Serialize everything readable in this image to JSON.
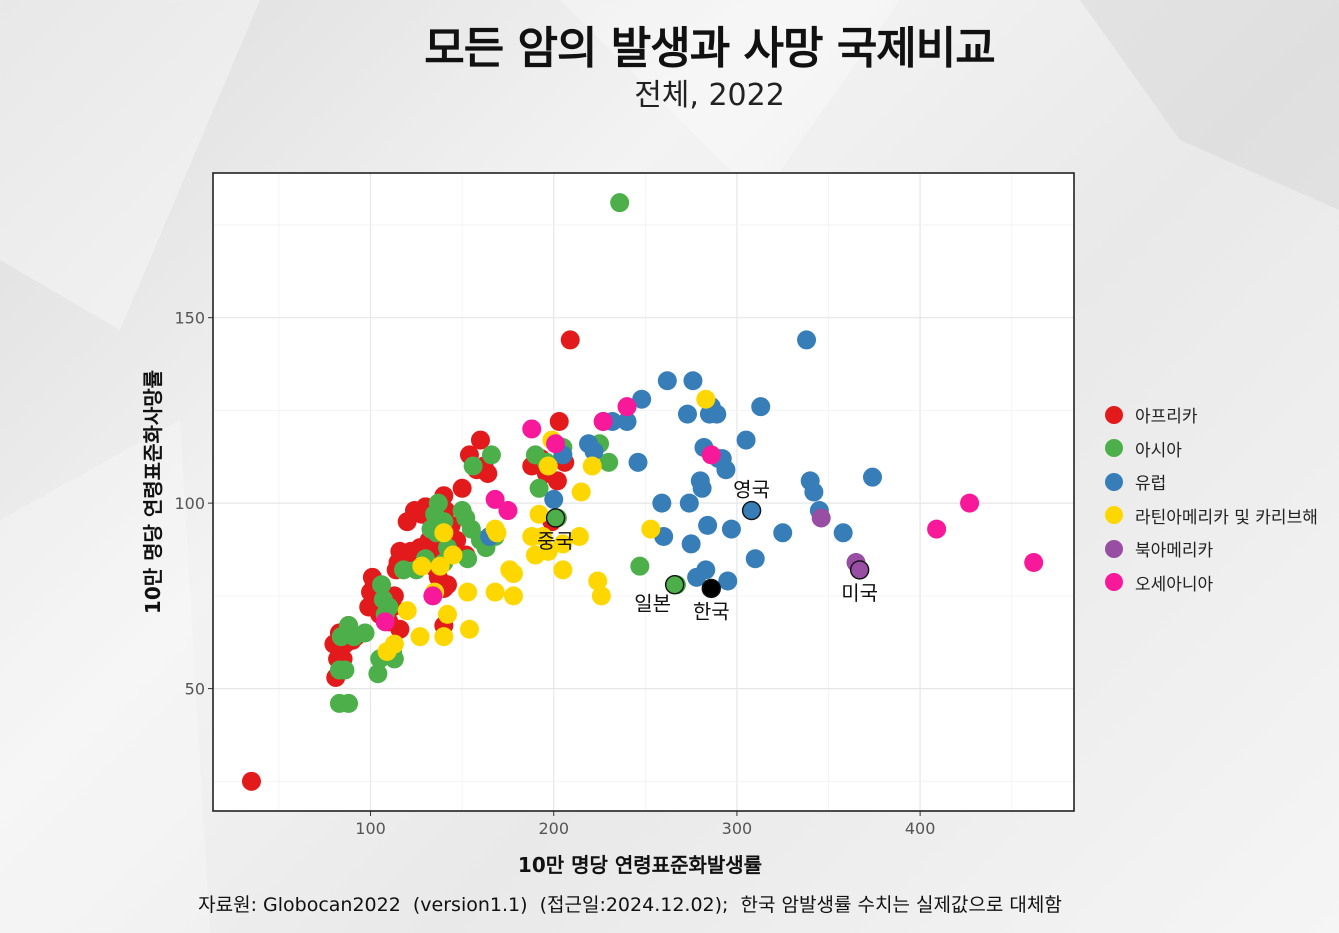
{
  "title": "모든 암의 발생과 사망 국제비교",
  "subtitle": "전체, 2022",
  "caption": "자료원: Globocan2022  (version1.1)  (접근일:2024.12.02);  한국 암발생률 수치는 실제값으로 대체함",
  "colors": {
    "africa": "#e31a1c",
    "asia": "#4daf4a",
    "europe": "#377eb8",
    "latin": "#ffd700",
    "northamerica": "#984ea3",
    "oceania": "#f7199a",
    "korea": "#000000"
  },
  "chart_data": {
    "type": "scatter",
    "xlabel": "10만 명당 연령표준화발생률",
    "ylabel": "10만 명당 연령표준화사망률",
    "xlim": [
      14,
      484
    ],
    "ylim": [
      17,
      189
    ],
    "xticks": [
      100,
      200,
      300,
      400
    ],
    "yticks": [
      50,
      100,
      150
    ],
    "grid": true,
    "legend_position": "right",
    "legend": [
      {
        "key": "africa",
        "label": "아프리카"
      },
      {
        "key": "asia",
        "label": "아시아"
      },
      {
        "key": "europe",
        "label": "유럽"
      },
      {
        "key": "latin",
        "label": "라틴아메리카 및 카리브해"
      },
      {
        "key": "northamerica",
        "label": "북아메리카"
      },
      {
        "key": "oceania",
        "label": "오세아니아"
      }
    ],
    "series": [
      {
        "key": "africa",
        "points": [
          [
            35,
            25
          ],
          [
            81,
            53
          ],
          [
            80,
            62
          ],
          [
            82,
            58
          ],
          [
            85,
            58
          ],
          [
            83,
            65
          ],
          [
            86,
            62
          ],
          [
            90,
            63
          ],
          [
            88,
            67
          ],
          [
            92,
            64
          ],
          [
            99,
            72
          ],
          [
            100,
            76
          ],
          [
            102,
            78
          ],
          [
            101,
            80
          ],
          [
            104,
            74
          ],
          [
            105,
            70
          ],
          [
            108,
            71
          ],
          [
            110,
            68
          ],
          [
            112,
            72
          ],
          [
            113,
            75
          ],
          [
            114,
            82
          ],
          [
            115,
            84
          ],
          [
            116,
            87
          ],
          [
            118,
            86
          ],
          [
            116,
            66
          ],
          [
            120,
            95
          ],
          [
            122,
            87
          ],
          [
            124,
            98
          ],
          [
            125,
            86
          ],
          [
            127,
            88
          ],
          [
            128,
            97
          ],
          [
            130,
            99
          ],
          [
            132,
            90
          ],
          [
            133,
            85
          ],
          [
            135,
            88
          ],
          [
            136,
            82
          ],
          [
            137,
            80
          ],
          [
            138,
            93
          ],
          [
            139,
            96
          ],
          [
            140,
            102
          ],
          [
            141,
            98
          ],
          [
            140,
            77
          ],
          [
            142,
            78
          ],
          [
            140,
            67
          ],
          [
            144,
            94
          ],
          [
            147,
            90
          ],
          [
            150,
            104
          ],
          [
            152,
            86
          ],
          [
            154,
            113
          ],
          [
            158,
            109
          ],
          [
            160,
            117
          ],
          [
            162,
            110
          ],
          [
            164,
            108
          ],
          [
            188,
            110
          ],
          [
            193,
            112
          ],
          [
            196,
            108
          ],
          [
            199,
            95
          ],
          [
            202,
            106
          ],
          [
            203,
            122
          ],
          [
            206,
            111
          ],
          [
            209,
            144
          ]
        ]
      },
      {
        "key": "asia",
        "points": [
          [
            83,
            46
          ],
          [
            88,
            46
          ],
          [
            83,
            55
          ],
          [
            86,
            55
          ],
          [
            84,
            64
          ],
          [
            88,
            67
          ],
          [
            91,
            64
          ],
          [
            97,
            65
          ],
          [
            104,
            54
          ],
          [
            105,
            58
          ],
          [
            107,
            74
          ],
          [
            106,
            78
          ],
          [
            108,
            70
          ],
          [
            110,
            72
          ],
          [
            112,
            60
          ],
          [
            113,
            58
          ],
          [
            118,
            82
          ],
          [
            125,
            82
          ],
          [
            130,
            85
          ],
          [
            133,
            93
          ],
          [
            135,
            97
          ],
          [
            136,
            92
          ],
          [
            137,
            100
          ],
          [
            140,
            95
          ],
          [
            140,
            84
          ],
          [
            142,
            88
          ],
          [
            150,
            98
          ],
          [
            152,
            96
          ],
          [
            153,
            85
          ],
          [
            155,
            93
          ],
          [
            156,
            110
          ],
          [
            160,
            90
          ],
          [
            163,
            88
          ],
          [
            165,
            91
          ],
          [
            166,
            113
          ],
          [
            168,
            91
          ],
          [
            190,
            113
          ],
          [
            192,
            104
          ],
          [
            196,
            111
          ],
          [
            202,
            96
          ],
          [
            205,
            115
          ],
          [
            225,
            116
          ],
          [
            230,
            111
          ],
          [
            236,
            181
          ],
          [
            247,
            83
          ],
          [
            267,
            78
          ]
        ]
      },
      {
        "key": "europe",
        "points": [
          [
            165,
            91
          ],
          [
            200,
            101
          ],
          [
            205,
            113
          ],
          [
            219,
            116
          ],
          [
            222,
            114
          ],
          [
            227,
            122
          ],
          [
            232,
            122
          ],
          [
            240,
            122
          ],
          [
            246,
            111
          ],
          [
            248,
            128
          ],
          [
            259,
            100
          ],
          [
            260,
            91
          ],
          [
            262,
            133
          ],
          [
            273,
            124
          ],
          [
            274,
            100
          ],
          [
            275,
            89
          ],
          [
            276,
            133
          ],
          [
            278,
            80
          ],
          [
            280,
            106
          ],
          [
            281,
            104
          ],
          [
            282,
            115
          ],
          [
            283,
            82
          ],
          [
            284,
            94
          ],
          [
            285,
            124
          ],
          [
            286,
            126
          ],
          [
            289,
            124
          ],
          [
            290,
            112
          ],
          [
            292,
            112
          ],
          [
            294,
            109
          ],
          [
            295,
            79
          ],
          [
            297,
            93
          ],
          [
            305,
            117
          ],
          [
            310,
            85
          ],
          [
            313,
            126
          ],
          [
            325,
            92
          ],
          [
            338,
            144
          ],
          [
            340,
            106
          ],
          [
            342,
            103
          ],
          [
            345,
            98
          ],
          [
            358,
            92
          ],
          [
            374,
            107
          ]
        ]
      },
      {
        "key": "latin",
        "points": [
          [
            109,
            60
          ],
          [
            113,
            62
          ],
          [
            120,
            71
          ],
          [
            127,
            64
          ],
          [
            128,
            83
          ],
          [
            135,
            76
          ],
          [
            138,
            83
          ],
          [
            140,
            92
          ],
          [
            140,
            64
          ],
          [
            142,
            70
          ],
          [
            145,
            86
          ],
          [
            153,
            76
          ],
          [
            154,
            66
          ],
          [
            168,
            93
          ],
          [
            169,
            92
          ],
          [
            168,
            76
          ],
          [
            176,
            82
          ],
          [
            178,
            81
          ],
          [
            178,
            75
          ],
          [
            188,
            91
          ],
          [
            190,
            86
          ],
          [
            192,
            97
          ],
          [
            194,
            91
          ],
          [
            197,
            87
          ],
          [
            197,
            110
          ],
          [
            199,
            117
          ],
          [
            205,
            89
          ],
          [
            205,
            82
          ],
          [
            214,
            91
          ],
          [
            215,
            103
          ],
          [
            221,
            110
          ],
          [
            224,
            79
          ],
          [
            226,
            75
          ],
          [
            253,
            93
          ],
          [
            283,
            128
          ]
        ]
      },
      {
        "key": "northamerica",
        "points": [
          [
            346,
            96
          ],
          [
            365,
            84
          ]
        ]
      },
      {
        "key": "oceania",
        "points": [
          [
            108,
            68
          ],
          [
            134,
            75
          ],
          [
            168,
            101
          ],
          [
            175,
            98
          ],
          [
            188,
            120
          ],
          [
            201,
            116
          ],
          [
            227,
            122
          ],
          [
            240,
            126
          ],
          [
            286,
            113
          ],
          [
            409,
            93
          ],
          [
            427,
            100
          ],
          [
            462,
            84
          ]
        ]
      }
    ],
    "highlights": [
      {
        "label": "영국",
        "x": 308,
        "y": 98,
        "series": "europe",
        "label_pos": "above"
      },
      {
        "label": "중국",
        "x": 201,
        "y": 96,
        "series": "asia",
        "label_pos": "below"
      },
      {
        "label": "일본",
        "x": 266,
        "y": 78,
        "series": "asia",
        "label_pos": "below-left"
      },
      {
        "label": "한국",
        "x": 286,
        "y": 77,
        "series": "korea",
        "label_pos": "below"
      },
      {
        "label": "미국",
        "x": 367,
        "y": 82,
        "series": "northamerica",
        "label_pos": "below"
      }
    ]
  }
}
